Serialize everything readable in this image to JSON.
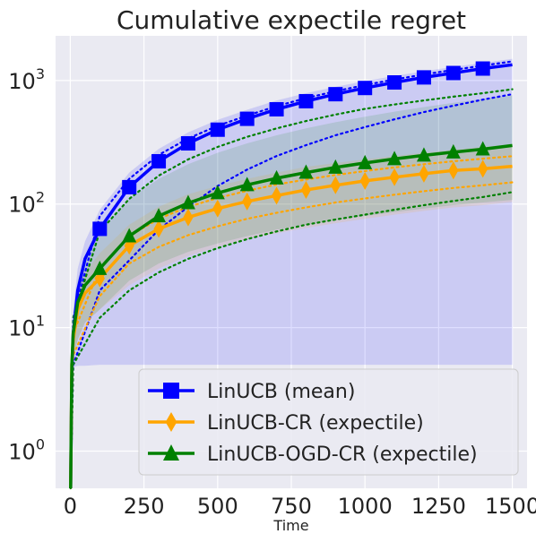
{
  "chart_data": {
    "type": "line",
    "title": "Cumulative expectile regret",
    "xlabel": "Time",
    "ylabel": "",
    "xlim": [
      -50,
      1550
    ],
    "ylim": [
      0.5,
      2300
    ],
    "yscale": "log",
    "grid": true,
    "legend_position": "lower-right",
    "x_ticks": [
      0,
      250,
      500,
      750,
      1000,
      1250,
      1500
    ],
    "x_tick_labels": [
      "0",
      "250",
      "500",
      "750",
      "1000",
      "1250",
      "1500"
    ],
    "y_ticks": [
      1,
      10,
      100,
      1000
    ],
    "y_tick_labels_base": [
      "10",
      "10",
      "10",
      "10"
    ],
    "y_tick_labels_exp": [
      "0",
      "1",
      "2",
      "3"
    ],
    "series": [
      {
        "name": "LinUCB (mean)",
        "color": "#0000ff",
        "marker": "square",
        "x": [
          1,
          5,
          10,
          25,
          50,
          100,
          200,
          300,
          400,
          500,
          600,
          700,
          800,
          900,
          1000,
          1100,
          1200,
          1300,
          1400,
          1500
        ],
        "y": [
          0.5,
          4,
          9,
          20,
          36,
          63,
          137,
          222,
          310,
          400,
          490,
          585,
          680,
          775,
          870,
          965,
          1060,
          1150,
          1250,
          1340
        ],
        "band_low": [
          0.5,
          4.5,
          4.8,
          4.9,
          4.9,
          5,
          5,
          5,
          5,
          5,
          5,
          5,
          5,
          5,
          5,
          5,
          5,
          5,
          5,
          5
        ],
        "band_high": [
          0.6,
          6,
          14,
          30,
          50,
          90,
          180,
          280,
          380,
          480,
          580,
          690,
          790,
          890,
          990,
          1090,
          1190,
          1290,
          1390,
          1500
        ],
        "q_low_x": [
          1,
          10,
          100,
          200,
          300,
          400,
          500,
          600,
          700,
          800,
          900,
          1000,
          1100,
          1200,
          1300,
          1400,
          1500
        ],
        "q_low_y": [
          0.5,
          5,
          20,
          35,
          62,
          95,
          140,
          190,
          245,
          300,
          360,
          420,
          485,
          555,
          625,
          700,
          775
        ],
        "q_high_x": [
          1,
          10,
          100,
          200,
          300,
          400,
          500,
          600,
          700,
          800,
          900,
          1000,
          1100,
          1200,
          1300,
          1400,
          1500
        ],
        "q_high_y": [
          0.6,
          12,
          80,
          160,
          250,
          340,
          430,
          520,
          620,
          720,
          820,
          920,
          1020,
          1120,
          1220,
          1320,
          1430
        ]
      },
      {
        "name": "LinUCB-CR (expectile)",
        "color": "#ffa500",
        "marker": "diamond",
        "x": [
          1,
          5,
          10,
          25,
          50,
          100,
          200,
          300,
          400,
          500,
          600,
          700,
          800,
          900,
          1000,
          1100,
          1200,
          1300,
          1400,
          1500
        ],
        "y": [
          0.5,
          5,
          8,
          14,
          19,
          25,
          46,
          63,
          78,
          92,
          105,
          117,
          130,
          142,
          154,
          165,
          176,
          187,
          193,
          202
        ],
        "band_low": [
          0.5,
          4.6,
          5.5,
          8,
          11,
          14,
          22,
          30,
          38,
          45,
          52,
          58,
          64,
          70,
          76,
          82,
          88,
          94,
          98,
          104
        ],
        "band_high": [
          0.6,
          6,
          12,
          20,
          28,
          40,
          68,
          95,
          120,
          140,
          160,
          180,
          200,
          215,
          230,
          245,
          260,
          275,
          290,
          305
        ],
        "q_low_x": [
          1,
          10,
          100,
          200,
          300,
          400,
          500,
          600,
          700,
          800,
          900,
          1000,
          1100,
          1200,
          1300,
          1400,
          1500
        ],
        "q_low_y": [
          0.5,
          6,
          18,
          33,
          45,
          56,
          66,
          76,
          85,
          94,
          103,
          111,
          119,
          127,
          135,
          142,
          150
        ],
        "q_high_x": [
          1,
          10,
          100,
          200,
          300,
          400,
          500,
          600,
          700,
          800,
          900,
          1000,
          1100,
          1200,
          1300,
          1400,
          1500
        ],
        "q_high_y": [
          0.6,
          9,
          30,
          55,
          76,
          95,
          112,
          128,
          144,
          158,
          172,
          185,
          198,
          210,
          222,
          233,
          244
        ]
      },
      {
        "name": "LinUCB-OGD-CR (expectile)",
        "color": "#008000",
        "marker": "triangle",
        "x": [
          1,
          5,
          10,
          25,
          50,
          100,
          200,
          300,
          400,
          500,
          600,
          700,
          800,
          900,
          1000,
          1100,
          1200,
          1300,
          1400,
          1500
        ],
        "y": [
          0.5,
          5,
          9,
          16,
          22,
          30,
          55,
          80,
          102,
          123,
          143,
          162,
          180,
          198,
          215,
          232,
          248,
          263,
          278,
          298
        ],
        "band_low": [
          0.5,
          4.6,
          5.5,
          8,
          11,
          14,
          24,
          33,
          41,
          48,
          55,
          62,
          68,
          74,
          80,
          86,
          92,
          98,
          103,
          108
        ],
        "band_high": [
          0.6,
          6,
          13,
          24,
          36,
          60,
          110,
          160,
          210,
          260,
          310,
          360,
          410,
          460,
          510,
          560,
          610,
          660,
          710,
          760
        ],
        "q_low_x": [
          1,
          10,
          100,
          200,
          300,
          400,
          500,
          600,
          700,
          800,
          900,
          1000,
          1100,
          1200,
          1300,
          1400,
          1500
        ],
        "q_low_y": [
          0.5,
          5,
          12,
          20,
          28,
          36,
          44,
          52,
          60,
          68,
          75,
          82,
          90,
          98,
          106,
          114,
          125
        ],
        "q_high_x": [
          1,
          10,
          100,
          200,
          300,
          400,
          500,
          600,
          700,
          800,
          900,
          1000,
          1100,
          1200,
          1300,
          1400,
          1500
        ],
        "q_high_y": [
          0.6,
          12,
          60,
          110,
          170,
          230,
          290,
          350,
          410,
          470,
          530,
          590,
          640,
          690,
          740,
          790,
          850
        ]
      }
    ]
  }
}
